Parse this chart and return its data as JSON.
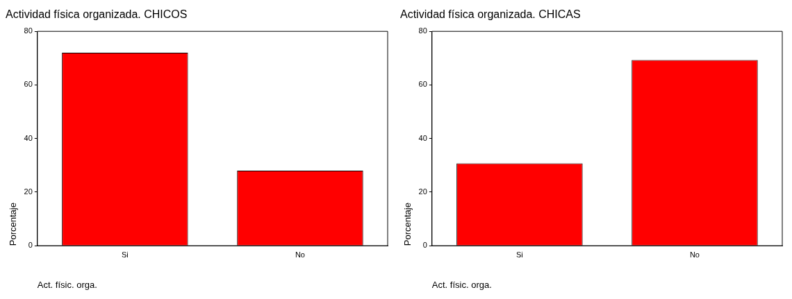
{
  "chart_data": [
    {
      "type": "bar",
      "title": "Actividad física organizada. CHICOS",
      "xlabel": "Act. físic. orga.",
      "ylabel": "Porcentaje",
      "categories": [
        "Si",
        "No"
      ],
      "values": [
        72,
        28
      ],
      "color": "#ff0000",
      "ylim": [
        0,
        80
      ],
      "yticks": [
        0,
        20,
        40,
        60,
        80
      ],
      "grid": false
    },
    {
      "type": "bar",
      "title": "Actividad física organizada. CHICAS",
      "xlabel": "Act. físic. orga.",
      "ylabel": "Porcentaje",
      "categories": [
        "Si",
        "No"
      ],
      "values": [
        30.7,
        69.3
      ],
      "color": "#ff0000",
      "ylim": [
        0,
        80
      ],
      "yticks": [
        0,
        20,
        40,
        60,
        80
      ],
      "grid": false
    }
  ]
}
